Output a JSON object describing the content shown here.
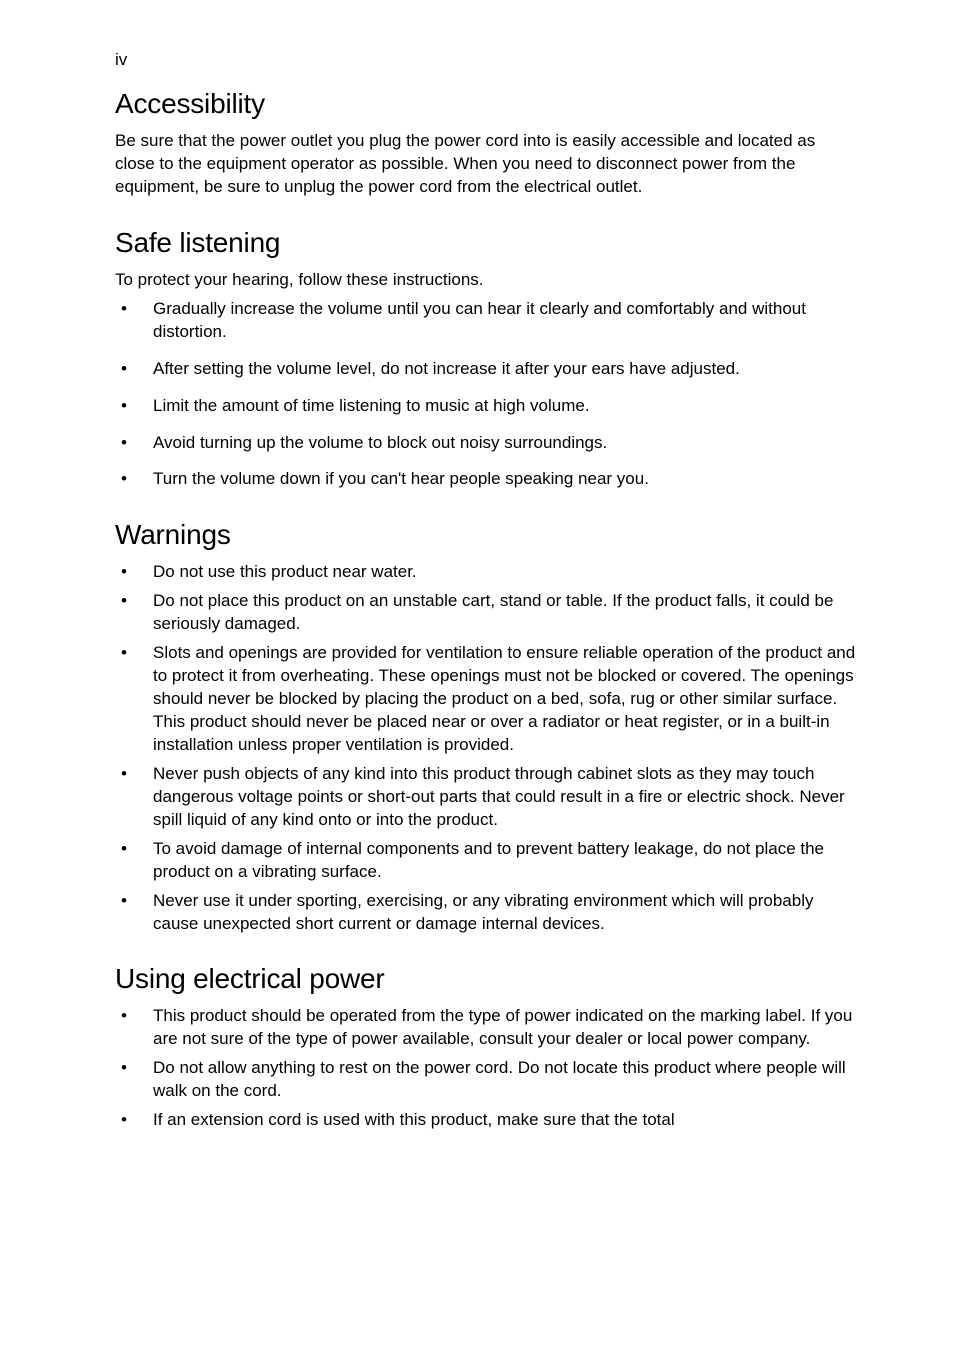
{
  "page_number": "iv",
  "sections": {
    "accessibility": {
      "heading": "Accessibility",
      "intro": "Be sure that the power outlet you plug the power cord into is easily accessible and located as close to the equipment operator as possible. When you need to disconnect power from the equipment, be sure to unplug the power cord from the electrical outlet."
    },
    "safe_listening": {
      "heading": "Safe listening",
      "intro": "To protect your hearing, follow these instructions.",
      "items": [
        "Gradually increase the volume until you can hear it clearly and comfortably and without distortion.",
        "After setting the volume level, do not increase it after your ears have adjusted.",
        "Limit the amount of time listening to music at high volume.",
        "Avoid turning up the volume to block out noisy surroundings.",
        "Turn the volume down if you can't hear people speaking near you."
      ]
    },
    "warnings": {
      "heading": "Warnings",
      "items": [
        "Do not use this product near water.",
        "Do not place this product on an unstable cart, stand or table. If the product falls, it could be seriously damaged.",
        "Slots and openings are provided for ventilation to ensure reliable operation of the product and to protect it from overheating. These openings must not be blocked or covered. The openings should never be blocked by placing the product on a bed, sofa, rug or other similar surface. This product should never be placed near or over a radiator or heat register, or in a built-in installation unless proper ventilation is provided.",
        "Never push objects of any kind into this product through cabinet slots as they may touch dangerous voltage points or short-out parts that could result in a fire or electric shock. Never spill liquid of any kind onto or into the product.",
        "To avoid damage of internal components and to prevent battery leakage, do not place the product on a vibrating surface.",
        "Never use it under sporting, exercising, or any vibrating environment which will probably cause unexpected short current or damage internal devices."
      ]
    },
    "electrical_power": {
      "heading": "Using electrical power",
      "items": [
        "This product should be operated from the type of power indicated on the marking label. If you are not sure of the type of power available, consult your dealer or local power company.",
        "Do not allow anything to rest on the power cord. Do not locate this product where people will walk on the cord.",
        "If an extension cord is used with this product, make sure that the total"
      ]
    }
  }
}
